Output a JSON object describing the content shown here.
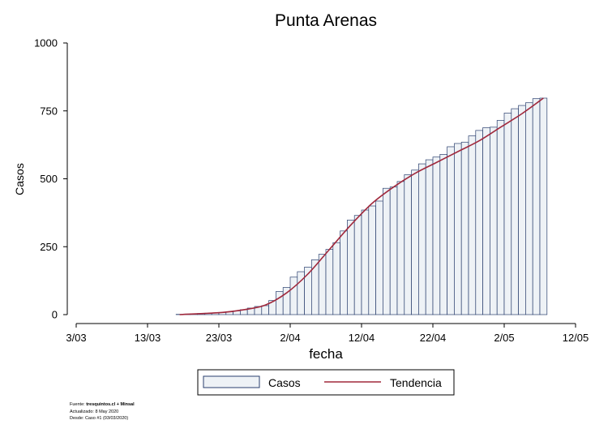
{
  "chart_data": {
    "type": "bar",
    "title": "Punta Arenas",
    "xlabel": "fecha",
    "ylabel": "Casos",
    "ylim": [
      0,
      1000
    ],
    "yticks": [
      0,
      250,
      500,
      750,
      1000
    ],
    "x_ticks": [
      "3/03",
      "13/03",
      "23/03",
      "2/04",
      "12/04",
      "22/04",
      "2/05",
      "12/05"
    ],
    "x_range_days": [
      0,
      70
    ],
    "grid": false,
    "legend_position": "bottom",
    "series": [
      {
        "name": "Casos",
        "kind": "bar",
        "start_day": 14,
        "x": [
          "17/03",
          "18/03",
          "19/03",
          "20/03",
          "21/03",
          "22/03",
          "23/03",
          "24/03",
          "25/03",
          "26/03",
          "27/03",
          "28/03",
          "29/03",
          "30/03",
          "31/03",
          "1/04",
          "2/04",
          "3/04",
          "4/04",
          "5/04",
          "6/04",
          "7/04",
          "8/04",
          "9/04",
          "10/04",
          "11/04",
          "12/04",
          "13/04",
          "14/04",
          "15/04",
          "16/04",
          "17/04",
          "18/04",
          "19/04",
          "20/04",
          "21/04",
          "22/04",
          "23/04",
          "24/04",
          "25/04",
          "26/04",
          "27/04",
          "28/04",
          "29/04",
          "30/04",
          "1/05",
          "2/05",
          "3/05",
          "4/05",
          "5/05",
          "6/05",
          "7/05"
        ],
        "values": [
          1,
          2,
          3,
          4,
          5,
          6,
          8,
          10,
          14,
          18,
          24,
          30,
          33,
          52,
          85,
          100,
          138,
          158,
          175,
          202,
          222,
          240,
          265,
          308,
          348,
          365,
          385,
          400,
          418,
          465,
          470,
          490,
          515,
          532,
          555,
          570,
          580,
          590,
          618,
          630,
          635,
          658,
          678,
          688,
          690,
          715,
          742,
          758,
          770,
          780,
          795,
          797
        ]
      },
      {
        "name": "Tendencia",
        "kind": "line",
        "x": [
          "17/03",
          "23/03",
          "26/03",
          "29/03",
          "1/04",
          "4/04",
          "7/04",
          "10/04",
          "13/04",
          "16/04",
          "19/04",
          "22/04",
          "25/04",
          "28/04",
          "1/05",
          "4/05",
          "7/05"
        ],
        "values": [
          0,
          8,
          18,
          35,
          80,
          150,
          240,
          330,
          410,
          470,
          520,
          560,
          600,
          640,
          690,
          740,
          797
        ]
      }
    ]
  },
  "colors": {
    "bar_fill": "#eef2f6",
    "bar_stroke": "#2a3f6e",
    "trend_line": "#a0283c",
    "axis": "#000000"
  },
  "legend": {
    "bars_label": "Casos",
    "line_label": "Tendencia"
  },
  "footnote": {
    "source_prefix": "Fuente: ",
    "source_bold": "tresquintos.cl + Minsal",
    "updated": "Actualizado: 8 May 2020",
    "since": "Desde: Caso #1  (03/03/2020)"
  }
}
